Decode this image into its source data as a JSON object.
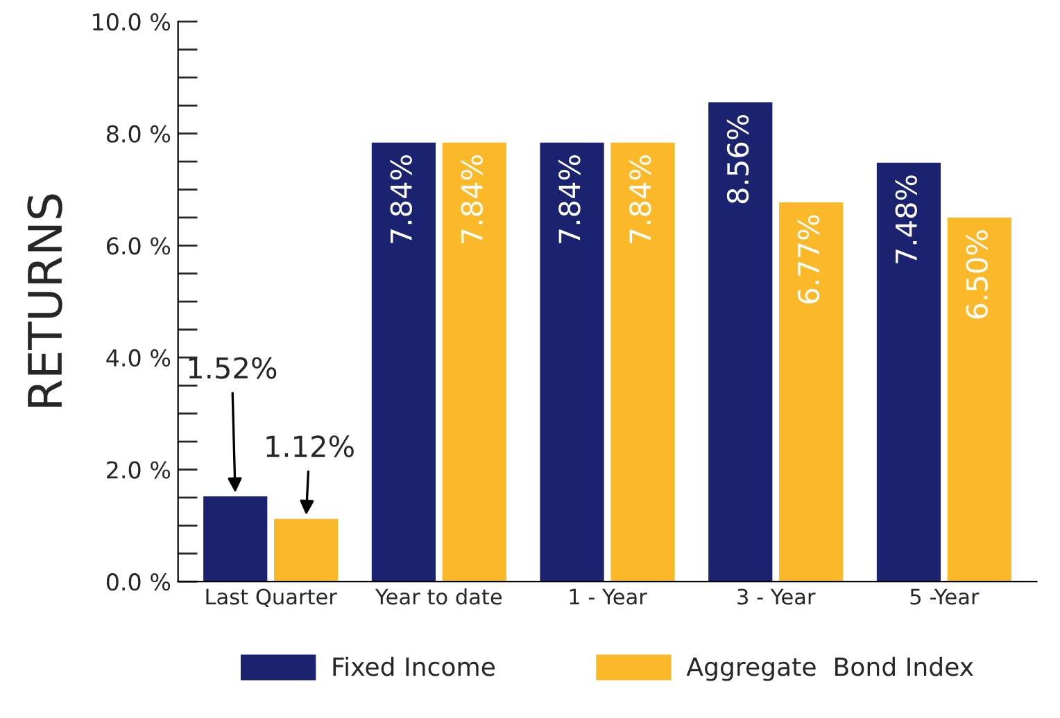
{
  "chart_data": {
    "type": "bar",
    "ylabel": "RETURNS",
    "categories": [
      "Last Quarter",
      "Year to date",
      "1 - Year",
      "3 - Year",
      "5 -Year"
    ],
    "series": [
      {
        "name": "Fixed Income",
        "color": "#1b2370",
        "values": [
          1.52,
          7.84,
          7.84,
          8.56,
          7.48
        ],
        "value_labels": [
          "1.52%",
          "7.84%",
          "7.84%",
          "8.56%",
          "7.48%"
        ]
      },
      {
        "name": "Aggregate  Bond Index",
        "color": "#fbb829",
        "values": [
          1.12,
          7.84,
          7.84,
          6.77,
          6.5
        ],
        "value_labels": [
          "1.12%",
          "7.84%",
          "7.84%",
          "6.77%",
          "6.50%"
        ]
      }
    ],
    "ylim": [
      0,
      10
    ],
    "yticks": [
      {
        "value": 0,
        "label": "0.0 %"
      },
      {
        "value": 0.5,
        "label": null
      },
      {
        "value": 1,
        "label": null
      },
      {
        "value": 1.5,
        "label": null
      },
      {
        "value": 2,
        "label": "2.0 %"
      },
      {
        "value": 2.5,
        "label": null
      },
      {
        "value": 3,
        "label": null
      },
      {
        "value": 3.5,
        "label": null
      },
      {
        "value": 4,
        "label": "4.0 %"
      },
      {
        "value": 4.5,
        "label": null
      },
      {
        "value": 5,
        "label": null
      },
      {
        "value": 5.5,
        "label": null
      },
      {
        "value": 6,
        "label": "6.0 %"
      },
      {
        "value": 6.5,
        "label": null
      },
      {
        "value": 7,
        "label": null
      },
      {
        "value": 7.5,
        "label": null
      },
      {
        "value": 8,
        "label": "8.0 %"
      },
      {
        "value": 8.5,
        "label": null
      },
      {
        "value": 9,
        "label": null
      },
      {
        "value": 9.5,
        "label": null
      },
      {
        "value": 10,
        "label": "10.0 %"
      }
    ],
    "grid": false,
    "legend": "bottom"
  }
}
